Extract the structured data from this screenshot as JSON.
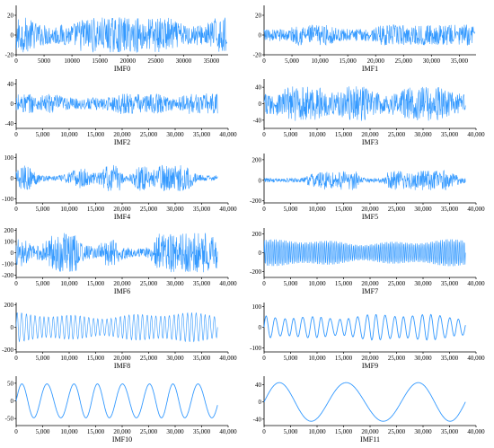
{
  "colors": {
    "signal": "#3399ff",
    "signal_dark": "#3366dd",
    "axis": "#000000",
    "tick_green": "#22bb55",
    "tick_blue": "#55aaff"
  },
  "chart_data": [
    {
      "type": "line",
      "title": "IMF0",
      "xlim": [
        0,
        38000
      ],
      "ylim": [
        -20,
        30
      ],
      "xticks": [
        0,
        5000,
        10000,
        15000,
        20000,
        25000,
        30000,
        35000
      ],
      "xtick_labels": [
        "0",
        "5000",
        "10000",
        "15000",
        "20000",
        "25000",
        "30000",
        "35000"
      ],
      "yticks": [
        -20,
        0,
        20
      ],
      "ytick_labels": [
        "-20",
        "0",
        "20"
      ],
      "amplitude": 12,
      "character": "noise"
    },
    {
      "type": "line",
      "title": "IMF1",
      "xlim": [
        0,
        38000
      ],
      "ylim": [
        -20,
        30
      ],
      "xticks": [
        0,
        5000,
        10000,
        15000,
        20000,
        25000,
        30000,
        35000
      ],
      "xtick_labels": [
        "0",
        "5,000",
        "10,000",
        "15,000",
        "20,000",
        "25,000",
        "30,000",
        "35,000"
      ],
      "yticks": [
        -20,
        0,
        20
      ],
      "ytick_labels": [
        "-20",
        "0",
        "20"
      ],
      "amplitude": 7,
      "character": "noise"
    },
    {
      "type": "line",
      "title": "IMF2",
      "xlim": [
        0,
        40000
      ],
      "ylim": [
        -50,
        50
      ],
      "xticks": [
        0,
        5000,
        10000,
        15000,
        20000,
        25000,
        30000,
        35000,
        40000
      ],
      "xtick_labels": [
        "0",
        "5,000",
        "10,000",
        "15,000",
        "20,000",
        "25,000",
        "30,000",
        "35,000",
        "40,000"
      ],
      "yticks": [
        -40,
        0,
        40
      ],
      "ytick_labels": [
        "-40",
        "0",
        "40"
      ],
      "amplitude": 14,
      "character": "noise"
    },
    {
      "type": "line",
      "title": "IMF3",
      "xlim": [
        0,
        40000
      ],
      "ylim": [
        -60,
        60
      ],
      "xticks": [
        0,
        5000,
        10000,
        15000,
        20000,
        25000,
        30000,
        35000,
        40000
      ],
      "xtick_labels": [
        "0",
        "5,000",
        "10,000",
        "15,000",
        "20,000",
        "25,000",
        "30,000",
        "35,000",
        "40,000"
      ],
      "yticks": [
        -40,
        0,
        40
      ],
      "ytick_labels": [
        "-40",
        "0",
        "40"
      ],
      "amplitude": 28,
      "character": "noise"
    },
    {
      "type": "line",
      "title": "IMF4",
      "xlim": [
        0,
        40000
      ],
      "ylim": [
        -120,
        120
      ],
      "xticks": [
        0,
        5000,
        10000,
        15000,
        20000,
        25000,
        30000,
        35000,
        40000
      ],
      "xtick_labels": [
        "0",
        "5,000",
        "10,000",
        "15,000",
        "20,000",
        "25,000",
        "30,000",
        "35,000",
        "40,000"
      ],
      "yticks": [
        -100,
        0,
        100
      ],
      "ytick_labels": [
        "-100",
        "0",
        "100"
      ],
      "amplitude": 40,
      "character": "bursty"
    },
    {
      "type": "line",
      "title": "IMF5",
      "xlim": [
        0,
        40000
      ],
      "ylim": [
        -220,
        260
      ],
      "xticks": [
        0,
        5000,
        10000,
        15000,
        20000,
        25000,
        30000,
        35000,
        40000
      ],
      "xtick_labels": [
        "0",
        "5,000",
        "10,000",
        "15,000",
        "20,000",
        "25,000",
        "30,000",
        "35,000",
        "40,000"
      ],
      "yticks": [
        -200,
        0,
        200
      ],
      "ytick_labels": [
        "-200",
        "0",
        "200"
      ],
      "amplitude": 60,
      "character": "bursty"
    },
    {
      "type": "line",
      "title": "IMF6",
      "xlim": [
        0,
        40000
      ],
      "ylim": [
        -220,
        220
      ],
      "xticks": [
        0,
        5000,
        10000,
        15000,
        20000,
        25000,
        30000,
        35000,
        40000
      ],
      "xtick_labels": [
        "0",
        "5,000",
        "10,000",
        "15,000",
        "20,000",
        "25,000",
        "30,000",
        "35,000",
        "40,000"
      ],
      "yticks": [
        -200,
        -100,
        0,
        100,
        200
      ],
      "ytick_labels": [
        "-200",
        "-100",
        "0",
        "100",
        "200"
      ],
      "amplitude": 110,
      "character": "bursty"
    },
    {
      "type": "line",
      "title": "IMF7",
      "xlim": [
        0,
        40000
      ],
      "ylim": [
        -260,
        260
      ],
      "xticks": [
        0,
        5000,
        10000,
        15000,
        20000,
        25000,
        30000,
        35000,
        40000
      ],
      "xtick_labels": [
        "0",
        "5,000",
        "10,000",
        "15,000",
        "20,000",
        "25,000",
        "30,000",
        "35,000",
        "40,000"
      ],
      "yticks": [
        -200,
        0,
        200
      ],
      "ytick_labels": [
        "-200",
        "0",
        "200"
      ],
      "amplitude": 120,
      "character": "oscillation",
      "cycles": 120
    },
    {
      "type": "line",
      "title": "IMF8",
      "xlim": [
        0,
        40000
      ],
      "ylim": [
        -220,
        220
      ],
      "xticks": [
        0,
        5000,
        10000,
        15000,
        20000,
        25000,
        30000,
        35000,
        40000
      ],
      "xtick_labels": [
        "0",
        "5,000",
        "10,000",
        "15,000",
        "20,000",
        "25,000",
        "30,000",
        "35,000",
        "40,000"
      ],
      "yticks": [
        -200,
        0,
        200
      ],
      "ytick_labels": [
        "-200",
        "0",
        "200"
      ],
      "amplitude": 110,
      "character": "oscillation",
      "cycles": 45
    },
    {
      "type": "line",
      "title": "IMF9",
      "xlim": [
        0,
        40000
      ],
      "ylim": [
        -120,
        120
      ],
      "xticks": [
        0,
        5000,
        10000,
        15000,
        20000,
        25000,
        30000,
        35000,
        40000
      ],
      "xtick_labels": [
        "0",
        "5,000",
        "10,000",
        "15,000",
        "20,000",
        "25,000",
        "30,000",
        "35,000",
        "40,000"
      ],
      "yticks": [
        -100,
        0,
        100
      ],
      "ytick_labels": [
        "-100",
        "0",
        "100"
      ],
      "amplitude": 55,
      "character": "oscillation",
      "cycles": 22
    },
    {
      "type": "line",
      "title": "IMF10",
      "xlim": [
        0,
        40000
      ],
      "ylim": [
        -70,
        70
      ],
      "xticks": [
        0,
        5000,
        10000,
        15000,
        20000,
        25000,
        30000,
        35000,
        40000
      ],
      "xtick_labels": [
        "0",
        "5,000",
        "10,000",
        "15,000",
        "20,000",
        "25,000",
        "30,000",
        "35,000",
        "40,000"
      ],
      "yticks": [
        -50,
        0,
        50
      ],
      "ytick_labels": [
        "-50",
        "0",
        "50"
      ],
      "amplitude": 48,
      "character": "oscillation",
      "cycles": 8
    },
    {
      "type": "line",
      "title": "IMF11",
      "xlim": [
        0,
        40000
      ],
      "ylim": [
        -55,
        60
      ],
      "xticks": [
        0,
        5000,
        10000,
        15000,
        20000,
        25000,
        30000,
        35000,
        40000
      ],
      "xtick_labels": [
        "0",
        "5,000",
        "10,000",
        "15,000",
        "20,000",
        "25,000",
        "30,000",
        "35,000",
        "40,000"
      ],
      "yticks": [
        -40,
        0,
        40
      ],
      "ytick_labels": [
        "-40",
        "0",
        "40"
      ],
      "amplitude": 45,
      "character": "oscillation",
      "cycles": 3
    }
  ]
}
